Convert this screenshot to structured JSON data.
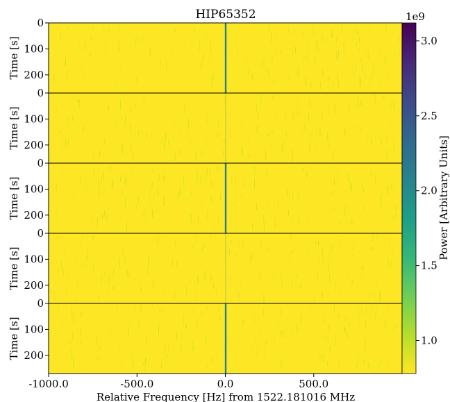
{
  "chart_data": {
    "type": "heatmap",
    "title": "HIP65352",
    "xlabel": "Relative Frequency [Hz] from 1522.181016 MHz",
    "ylabel": "Time [s]",
    "xlim": [
      -1000,
      1000
    ],
    "xticks": [
      -1000,
      -500,
      0,
      500
    ],
    "xtick_labels": [
      "-1000.0",
      "-500.0",
      "0.0",
      "500.0"
    ],
    "panel_ylim": [
      0,
      270
    ],
    "panel_yticks": [
      0,
      100,
      200
    ],
    "panel_ytick_labels": [
      "0",
      "100",
      "200"
    ],
    "panels": [
      {
        "panel": 1,
        "signal_frequency_hz": 2,
        "signal_visible": true
      },
      {
        "panel": 2,
        "signal_frequency_hz": 2,
        "signal_visible": false
      },
      {
        "panel": 3,
        "signal_frequency_hz": 2,
        "signal_visible": true
      },
      {
        "panel": 4,
        "signal_frequency_hz": 2,
        "signal_visible": false
      },
      {
        "panel": 5,
        "signal_frequency_hz": 2,
        "signal_visible": true
      }
    ],
    "colorbar": {
      "label": "Power [Arbitrary Units]",
      "scale_label": "1e9",
      "range": [
        0.78,
        3.12
      ],
      "ticks": [
        1.0,
        1.5,
        2.0,
        2.5,
        3.0
      ],
      "tick_labels": [
        "1.0",
        "1.5",
        "2.0",
        "2.5",
        "3.0"
      ],
      "colormap": "viridis_r",
      "colors": [
        "#fde725",
        "#b5de2b",
        "#6ece58",
        "#35b779",
        "#1f9e89",
        "#26828e",
        "#31688e",
        "#3e4989",
        "#482878",
        "#440154"
      ]
    },
    "background_color": "#fde725",
    "signal_color": "#26828e",
    "grid": false
  }
}
